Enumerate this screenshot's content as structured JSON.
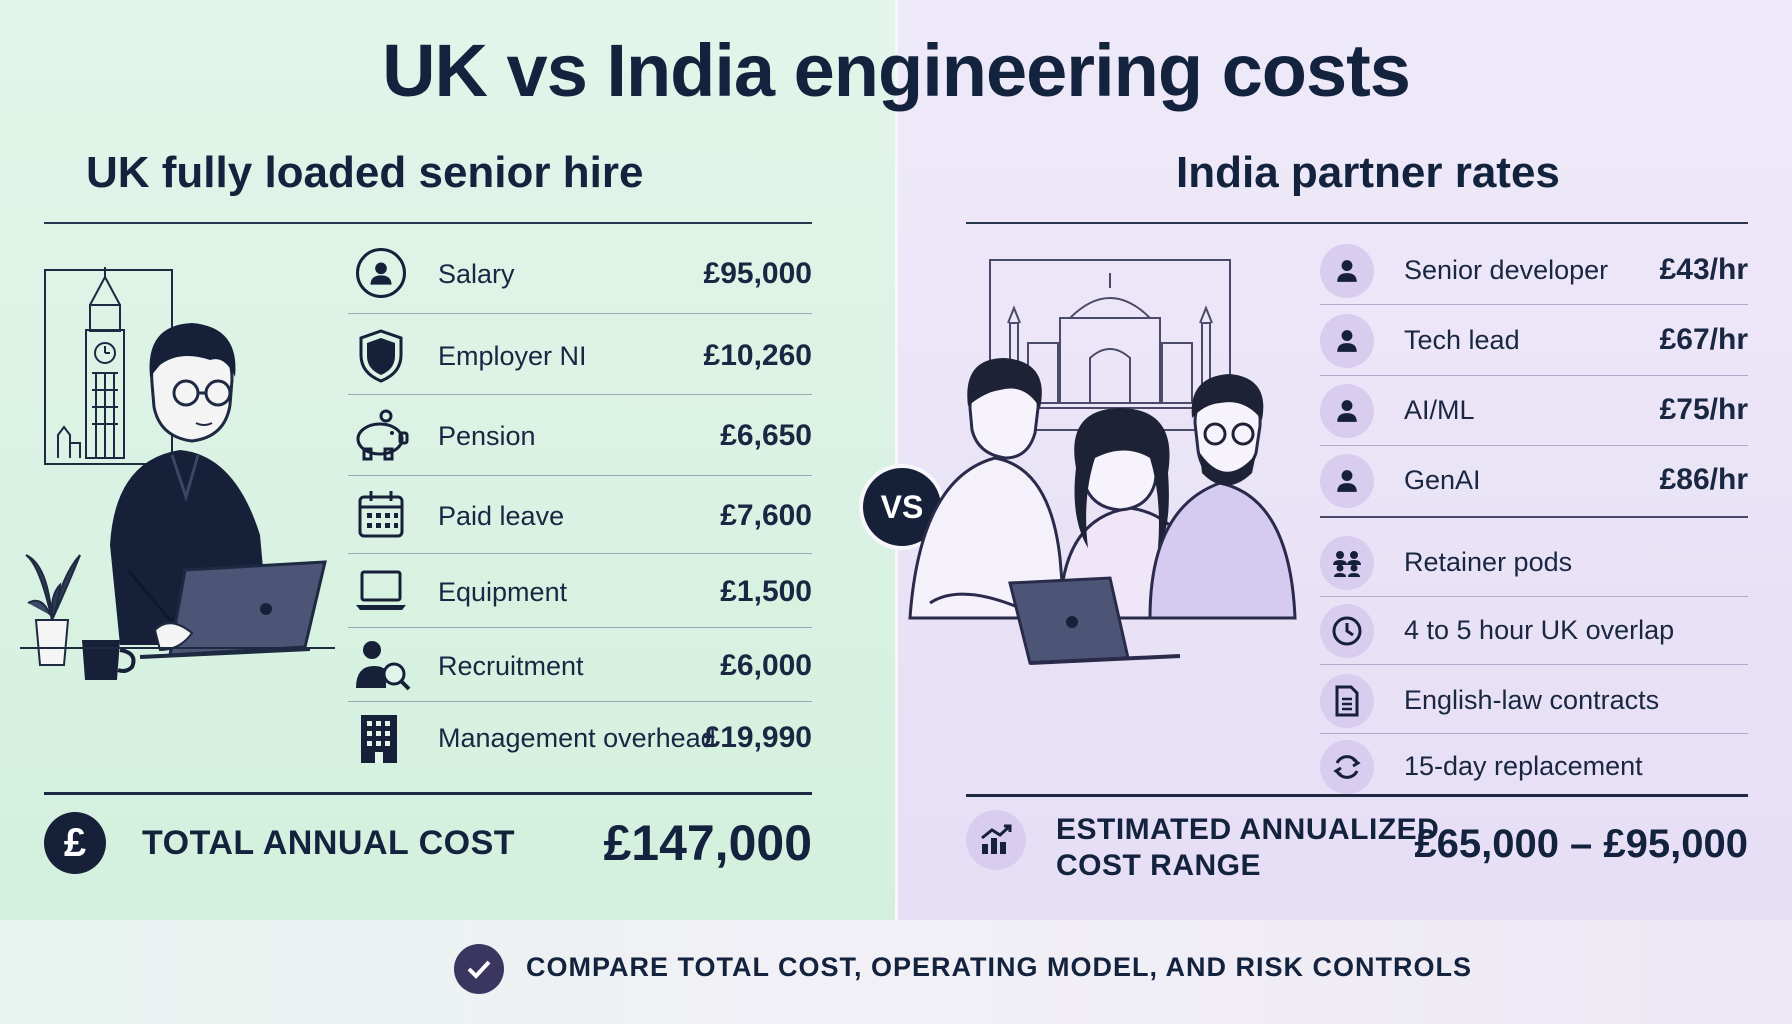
{
  "title": "UK vs India engineering costs",
  "vs_label": "VS",
  "uk": {
    "heading": "UK fully loaded senior hire",
    "items": [
      {
        "label": "Salary",
        "value": "£95,000",
        "icon": "person-icon"
      },
      {
        "label": "Employer NI",
        "value": "£10,260",
        "icon": "shield-icon"
      },
      {
        "label": "Pension",
        "value": "£6,650",
        "icon": "piggy-bank-icon"
      },
      {
        "label": "Paid leave",
        "value": "£7,600",
        "icon": "calendar-icon"
      },
      {
        "label": "Equipment",
        "value": "£1,500",
        "icon": "laptop-icon"
      },
      {
        "label": "Recruitment",
        "value": "£6,000",
        "icon": "recruitment-search-icon"
      },
      {
        "label": "Management overhead",
        "value": "£19,990",
        "icon": "building-icon"
      }
    ],
    "total_label": "TOTAL ANNUAL COST",
    "total_value": "£147,000",
    "total_icon_glyph": "£"
  },
  "india": {
    "heading": "India partner rates",
    "rates": [
      {
        "label": "Senior developer",
        "value": "£43/hr",
        "icon": "person-icon"
      },
      {
        "label": "Tech lead",
        "value": "£67/hr",
        "icon": "person-icon"
      },
      {
        "label": "AI/ML",
        "value": "£75/hr",
        "icon": "person-icon"
      },
      {
        "label": "GenAI",
        "value": "£86/hr",
        "icon": "person-icon"
      }
    ],
    "features": [
      {
        "label": "Retainer pods",
        "icon": "team-icon"
      },
      {
        "label": "4 to 5 hour UK overlap",
        "icon": "clock-icon"
      },
      {
        "label": "English-law contracts",
        "icon": "document-icon"
      },
      {
        "label": "15-day replacement",
        "icon": "refresh-icon"
      }
    ],
    "total_label_line1": "ESTIMATED ANNUALIZED",
    "total_label_line2": "COST RANGE",
    "total_value": "£65,000 – £95,000"
  },
  "footer": {
    "text": "COMPARE TOTAL COST, OPERATING MODEL, AND RISK CONTROLS",
    "icon": "check-icon"
  },
  "colors": {
    "navy": "#13223d",
    "left_bg": "#d9f2e3",
    "right_bg": "#ebe5f7",
    "purple_icon": "#d8cdef"
  }
}
